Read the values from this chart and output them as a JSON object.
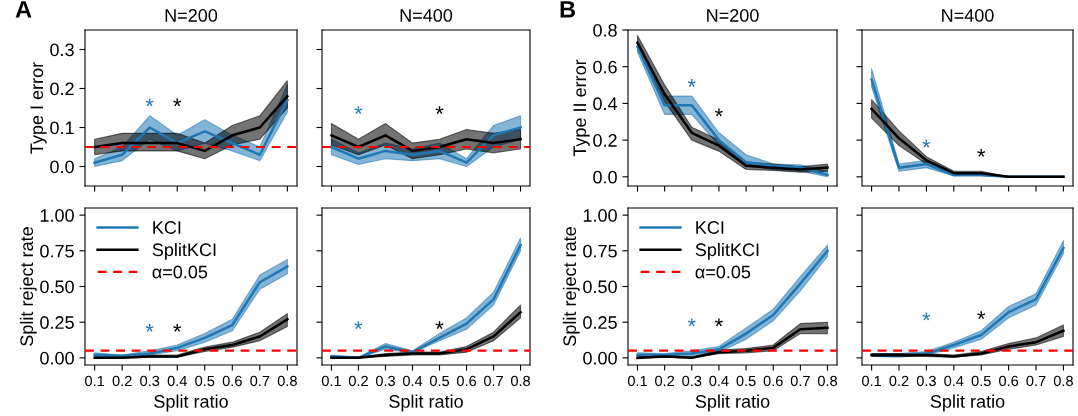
{
  "chart_data": [
    {
      "type": "line",
      "title": "N=200",
      "ylabel": "Type I error",
      "annotations": [
        "A",
        "*",
        "*"
      ],
      "tick_labels": "y",
      "x": [
        0.1,
        0.2,
        0.3,
        0.4,
        0.5,
        0.6,
        0.7,
        0.8
      ],
      "xlim": [
        0.065,
        0.835
      ],
      "xticks": [
        0.1,
        0.2,
        0.3,
        0.4,
        0.5,
        0.6,
        0.7,
        0.8
      ],
      "ylim": [
        -0.05,
        0.35
      ],
      "yticks": [
        {
          "value": 0,
          "label": "0.0"
        },
        0.1,
        0.2,
        0.3
      ],
      "series": [
        {
          "color": "#1f77b4",
          "values": [
            0.01,
            0.03,
            0.1,
            0.06,
            0.09,
            0.06,
            0.03,
            0.17
          ],
          "lower": [
            0.0,
            0.015,
            0.07,
            0.04,
            0.06,
            0.04,
            0.015,
            0.14
          ],
          "upper": [
            0.02,
            0.05,
            0.13,
            0.08,
            0.12,
            0.08,
            0.05,
            0.21
          ]
        },
        {
          "color": "#000000",
          "values": [
            0.05,
            0.06,
            0.06,
            0.06,
            0.04,
            0.08,
            0.1,
            0.18
          ],
          "lower": [
            0.03,
            0.04,
            0.04,
            0.04,
            0.02,
            0.055,
            0.07,
            0.15
          ],
          "upper": [
            0.07,
            0.085,
            0.085,
            0.085,
            0.06,
            0.105,
            0.13,
            0.22
          ]
        }
      ],
      "ref_lines": [
        {
          "axis": "y",
          "value": 0.05,
          "color": "#ff0000",
          "line_style": "dashed"
        }
      ]
    },
    {
      "type": "line",
      "title": "N=400",
      "annotations": [
        "*",
        "*"
      ],
      "tick_labels": false,
      "x": [
        0.1,
        0.2,
        0.3,
        0.4,
        0.5,
        0.6,
        0.7,
        0.8
      ],
      "xlim": [
        0.065,
        0.835
      ],
      "xticks": [
        {
          "value": 0.1,
          "label": null
        },
        {
          "value": 0.2,
          "label": null
        },
        {
          "value": 0.3,
          "label": null
        },
        {
          "value": 0.4,
          "label": null
        },
        {
          "value": 0.5,
          "label": null
        },
        {
          "value": 0.6,
          "label": null
        },
        {
          "value": 0.7,
          "label": null
        },
        {
          "value": 0.8,
          "label": null
        }
      ],
      "ylim": [
        -0.05,
        0.35
      ],
      "yticks": [
        {
          "value": 0,
          "label": null
        },
        {
          "value": 0.1,
          "label": null
        },
        {
          "value": 0.2,
          "label": null
        },
        {
          "value": 0.3,
          "label": null
        }
      ],
      "series": [
        {
          "color": "#1f77b4",
          "values": [
            0.05,
            0.02,
            0.04,
            0.03,
            0.04,
            0.01,
            0.08,
            0.1
          ],
          "lower": [
            0.03,
            0.005,
            0.02,
            0.015,
            0.02,
            0.0,
            0.05,
            0.07
          ],
          "upper": [
            0.07,
            0.035,
            0.06,
            0.045,
            0.06,
            0.02,
            0.105,
            0.13
          ]
        },
        {
          "color": "#000000",
          "values": [
            0.08,
            0.05,
            0.08,
            0.04,
            0.05,
            0.07,
            0.06,
            0.07
          ],
          "lower": [
            0.055,
            0.03,
            0.055,
            0.02,
            0.03,
            0.045,
            0.035,
            0.045
          ],
          "upper": [
            0.11,
            0.07,
            0.11,
            0.06,
            0.07,
            0.095,
            0.085,
            0.095
          ]
        }
      ],
      "ref_lines": [
        {
          "axis": "y",
          "value": 0.05,
          "color": "#ff0000",
          "line_style": "dashed"
        }
      ]
    },
    {
      "type": "line",
      "title": "N=200",
      "ylabel": "Type II error",
      "annotations": [
        "B",
        "*",
        "*"
      ],
      "tick_labels": "y",
      "x": [
        0.1,
        0.2,
        0.3,
        0.4,
        0.5,
        0.6,
        0.7,
        0.8
      ],
      "xlim": [
        0.065,
        0.835
      ],
      "xticks": [
        0.1,
        0.2,
        0.3,
        0.4,
        0.5,
        0.6,
        0.7,
        0.8
      ],
      "ylim": [
        -0.05,
        0.8
      ],
      "yticks": [
        {
          "value": 0,
          "label": "0.0"
        },
        0.2,
        0.4,
        0.6,
        0.8
      ],
      "series": [
        {
          "color": "#1f77b4",
          "values": [
            0.71,
            0.39,
            0.39,
            0.2,
            0.08,
            0.06,
            0.05,
            0.01
          ],
          "lower": [
            0.68,
            0.34,
            0.34,
            0.17,
            0.06,
            0.04,
            0.03,
            0.0
          ],
          "upper": [
            0.74,
            0.44,
            0.44,
            0.24,
            0.12,
            0.07,
            0.065,
            0.03
          ]
        },
        {
          "color": "#000000",
          "values": [
            0.73,
            0.45,
            0.24,
            0.17,
            0.06,
            0.05,
            0.04,
            0.05
          ],
          "lower": [
            0.7,
            0.41,
            0.2,
            0.14,
            0.04,
            0.035,
            0.025,
            0.03
          ],
          "upper": [
            0.77,
            0.5,
            0.27,
            0.2,
            0.08,
            0.07,
            0.055,
            0.07
          ]
        }
      ]
    },
    {
      "type": "line",
      "title": "N=400",
      "annotations": [
        "*",
        "*"
      ],
      "tick_labels": false,
      "x": [
        0.1,
        0.2,
        0.3,
        0.4,
        0.5,
        0.6,
        0.7,
        0.8
      ],
      "xlim": [
        0.065,
        0.835
      ],
      "xticks": [
        {
          "value": 0.1,
          "label": null
        },
        {
          "value": 0.2,
          "label": null
        },
        {
          "value": 0.3,
          "label": null
        },
        {
          "value": 0.4,
          "label": null
        },
        {
          "value": 0.5,
          "label": null
        },
        {
          "value": 0.6,
          "label": null
        },
        {
          "value": 0.7,
          "label": null
        },
        {
          "value": 0.8,
          "label": null
        }
      ],
      "ylim": [
        -0.05,
        0.8
      ],
      "yticks": [
        {
          "value": 0,
          "label": null
        },
        {
          "value": 0.2,
          "label": null
        },
        {
          "value": 0.4,
          "label": null
        },
        {
          "value": 0.6,
          "label": null
        },
        {
          "value": 0.8,
          "label": null
        }
      ],
      "series": [
        {
          "color": "#1f77b4",
          "values": [
            0.53,
            0.05,
            0.07,
            0.01,
            0.01,
            0,
            0,
            0
          ],
          "lower": [
            0.49,
            0.03,
            0.05,
            0.005,
            0.005,
            0,
            0,
            0
          ],
          "upper": [
            0.59,
            0.07,
            0.09,
            0.02,
            0.02,
            0,
            0,
            0
          ]
        },
        {
          "color": "#000000",
          "values": [
            0.37,
            0.21,
            0.09,
            0.02,
            0.02,
            0,
            0,
            0
          ],
          "lower": [
            0.32,
            0.17,
            0.07,
            0.01,
            0.01,
            0,
            0,
            0
          ],
          "upper": [
            0.42,
            0.25,
            0.11,
            0.03,
            0.03,
            0,
            0,
            0
          ]
        }
      ]
    },
    {
      "type": "line",
      "xlabel": "Split ratio",
      "ylabel": "Split reject rate",
      "annotations": [
        "*",
        "*"
      ],
      "legend": "top left",
      "x": [
        0.1,
        0.2,
        0.3,
        0.4,
        0.5,
        0.6,
        0.7,
        0.8
      ],
      "xlim": [
        0.065,
        0.835
      ],
      "xticks": [
        0.1,
        0.2,
        0.3,
        0.4,
        0.5,
        0.6,
        0.7,
        0.8
      ],
      "ylim": [
        -0.05,
        1.05
      ],
      "yticks": [
        {
          "value": 0,
          "label": "0.00"
        },
        {
          "value": 0.25,
          "label": "0.25"
        },
        {
          "value": 0.5,
          "label": "0.50"
        },
        {
          "value": 0.75,
          "label": "0.75"
        },
        {
          "value": 1,
          "label": "1.00"
        }
      ],
      "series": [
        {
          "name": "KCI",
          "color": "#1f77b4",
          "values": [
            0.02,
            0.015,
            0.03,
            0.07,
            0.14,
            0.23,
            0.53,
            0.64
          ],
          "lower": [
            0.01,
            0.01,
            0.02,
            0.05,
            0.11,
            0.19,
            0.48,
            0.59
          ],
          "upper": [
            0.035,
            0.02,
            0.05,
            0.09,
            0.17,
            0.27,
            0.58,
            0.69
          ]
        },
        {
          "name": "SplitKCI",
          "color": "#000000",
          "values": [
            0,
            0,
            0.01,
            0.01,
            0.06,
            0.09,
            0.15,
            0.27
          ],
          "lower": [
            0,
            0,
            0.005,
            0.005,
            0.045,
            0.075,
            0.12,
            0.22
          ],
          "upper": [
            0.005,
            0.005,
            0.02,
            0.02,
            0.075,
            0.11,
            0.18,
            0.31
          ]
        }
      ],
      "ref_lines": [
        {
          "axis": "y",
          "value": 0.05,
          "label": "α=0.05",
          "color": "#ff0000",
          "line_style": "dashed"
        }
      ]
    },
    {
      "type": "line",
      "xlabel": "Split ratio",
      "annotations": [
        "*",
        "*"
      ],
      "tick_labels": "x",
      "x": [
        0.1,
        0.2,
        0.3,
        0.4,
        0.5,
        0.6,
        0.7,
        0.8
      ],
      "xlim": [
        0.065,
        0.835
      ],
      "xticks": [
        0.1,
        0.2,
        0.3,
        0.4,
        0.5,
        0.6,
        0.7,
        0.8
      ],
      "ylim": [
        -0.05,
        1.05
      ],
      "yticks": [
        {
          "value": 0,
          "label": null
        },
        {
          "value": 0.25,
          "label": null
        },
        {
          "value": 0.5,
          "label": null
        },
        {
          "value": 0.75,
          "label": null
        },
        {
          "value": 1,
          "label": null
        }
      ],
      "series": [
        {
          "color": "#1f77b4",
          "values": [
            0.01,
            0,
            0.08,
            0.04,
            0.14,
            0.24,
            0.41,
            0.79
          ],
          "lower": [
            0,
            0,
            0.06,
            0.035,
            0.12,
            0.2,
            0.37,
            0.75
          ],
          "upper": [
            0.02,
            0.005,
            0.1,
            0.05,
            0.17,
            0.28,
            0.46,
            0.84
          ]
        },
        {
          "color": "#000000",
          "values": [
            0,
            0,
            0.02,
            0.03,
            0.03,
            0.06,
            0.15,
            0.32
          ],
          "lower": [
            0,
            0,
            0.01,
            0.02,
            0.02,
            0.04,
            0.12,
            0.28
          ],
          "upper": [
            0.005,
            0.005,
            0.03,
            0.04,
            0.04,
            0.08,
            0.18,
            0.37
          ]
        }
      ],
      "ref_lines": [
        {
          "axis": "y",
          "value": 0.05,
          "color": "#ff0000",
          "line_style": "dashed"
        }
      ]
    },
    {
      "type": "line",
      "xlabel": "Split ratio",
      "ylabel": "Split reject rate",
      "annotations": [
        "*",
        "*"
      ],
      "legend": "top left",
      "x": [
        0.1,
        0.2,
        0.3,
        0.4,
        0.5,
        0.6,
        0.7,
        0.8
      ],
      "xlim": [
        0.065,
        0.835
      ],
      "xticks": [
        0.1,
        0.2,
        0.3,
        0.4,
        0.5,
        0.6,
        0.7,
        0.8
      ],
      "ylim": [
        -0.05,
        1.05
      ],
      "yticks": [
        {
          "value": 0,
          "label": "0.00"
        },
        {
          "value": 0.25,
          "label": "0.25"
        },
        {
          "value": 0.5,
          "label": "0.50"
        },
        {
          "value": 0.75,
          "label": "0.75"
        },
        {
          "value": 1,
          "label": "1.00"
        }
      ],
      "series": [
        {
          "name": "KCI",
          "color": "#1f77b4",
          "values": [
            0.02,
            0.02,
            0.03,
            0.06,
            0.17,
            0.3,
            0.52,
            0.75
          ],
          "lower": [
            0.01,
            0.01,
            0.01,
            0.04,
            0.13,
            0.26,
            0.47,
            0.71
          ],
          "upper": [
            0.035,
            0.03,
            0.05,
            0.08,
            0.21,
            0.34,
            0.57,
            0.79
          ]
        },
        {
          "name": "SplitKCI",
          "color": "#000000",
          "values": [
            0,
            0.01,
            0,
            0.04,
            0.05,
            0.07,
            0.2,
            0.21
          ],
          "lower": [
            0,
            0.005,
            0,
            0.03,
            0.035,
            0.05,
            0.17,
            0.17
          ],
          "upper": [
            0.005,
            0.02,
            0.005,
            0.055,
            0.065,
            0.09,
            0.24,
            0.25
          ]
        }
      ],
      "ref_lines": [
        {
          "axis": "y",
          "value": 0.05,
          "label": "α=0.05",
          "color": "#ff0000",
          "line_style": "dashed"
        }
      ]
    },
    {
      "type": "line",
      "xlabel": "Split ratio",
      "annotations": [
        "*",
        "*"
      ],
      "tick_labels": "x",
      "x": [
        0.1,
        0.2,
        0.3,
        0.4,
        0.5,
        0.6,
        0.7,
        0.8
      ],
      "xlim": [
        0.065,
        0.835
      ],
      "xticks": [
        0.1,
        0.2,
        0.3,
        0.4,
        0.5,
        0.6,
        0.7,
        0.8
      ],
      "ylim": [
        -0.05,
        1.05
      ],
      "yticks": [
        {
          "value": 0,
          "label": null
        },
        {
          "value": 0.25,
          "label": null
        },
        {
          "value": 0.5,
          "label": null
        },
        {
          "value": 0.75,
          "label": null
        },
        {
          "value": 1,
          "label": null
        }
      ],
      "series": [
        {
          "color": "#1f77b4",
          "values": [
            0.02,
            0.02,
            0.03,
            0.09,
            0.16,
            0.32,
            0.41,
            0.77
          ],
          "lower": [
            0.01,
            0.005,
            0.02,
            0.07,
            0.13,
            0.28,
            0.37,
            0.73
          ],
          "upper": [
            0.03,
            0.03,
            0.045,
            0.11,
            0.19,
            0.36,
            0.45,
            0.82
          ]
        },
        {
          "color": "#000000",
          "values": [
            0.02,
            0.02,
            0.02,
            0.01,
            0.03,
            0.08,
            0.11,
            0.19
          ],
          "lower": [
            0.01,
            0.01,
            0.01,
            0.005,
            0.02,
            0.06,
            0.09,
            0.15
          ],
          "upper": [
            0.03,
            0.03,
            0.03,
            0.02,
            0.045,
            0.1,
            0.14,
            0.23
          ]
        }
      ],
      "ref_lines": [
        {
          "axis": "y",
          "value": 0.05,
          "color": "#ff0000",
          "line_style": "dashed"
        }
      ]
    }
  ]
}
